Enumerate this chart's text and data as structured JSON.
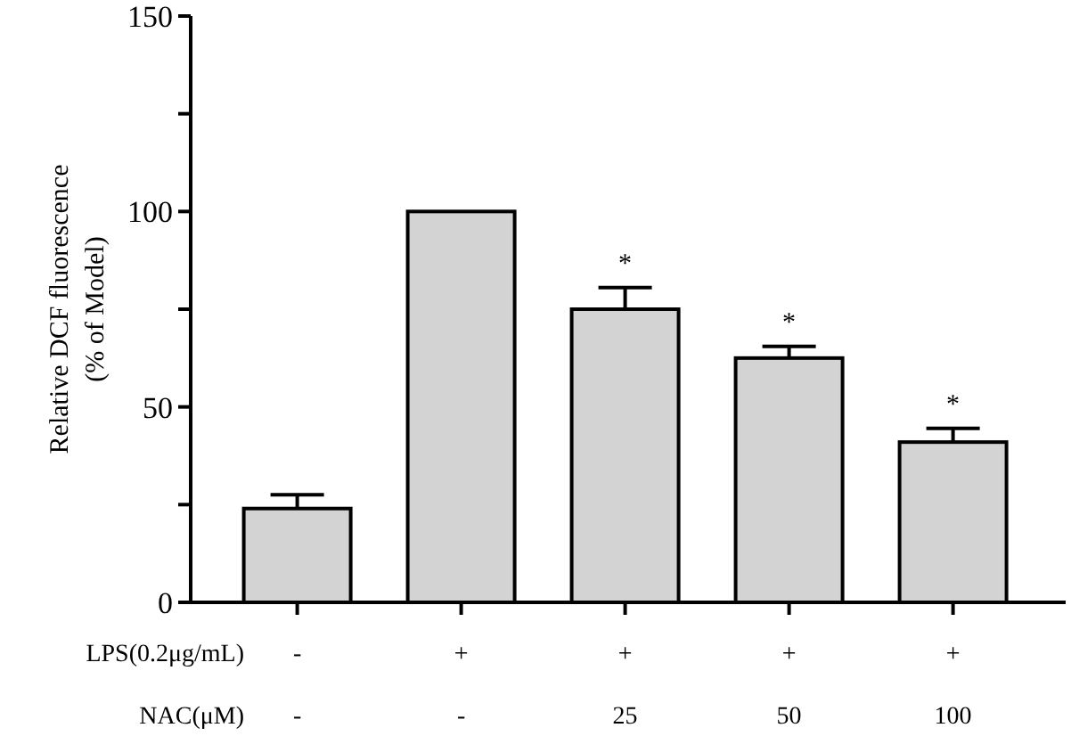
{
  "chart_data": {
    "type": "bar",
    "ylabel": "Relative DCF fluorescence\n(% of  Model)",
    "categories": [
      "-\n-",
      "+\n-",
      "+\n25",
      "+\n50",
      "+\n100"
    ],
    "values": [
      24,
      100,
      75,
      62.5,
      41
    ],
    "errors": [
      [
        24,
        27.5
      ],
      null,
      [
        75,
        80.5
      ],
      [
        62.5,
        65.5
      ],
      [
        41,
        44.5
      ]
    ],
    "value_labels": [
      null,
      null,
      "*",
      "*",
      "*"
    ],
    "color": "#d3d3d3",
    "ylim": [
      0,
      150
    ],
    "yticks": [
      0,
      {
        "value": 25,
        "label": null
      },
      50,
      {
        "value": 75,
        "label": null
      },
      100,
      {
        "value": 125,
        "label": null
      },
      150
    ],
    "annotations": [
      "LPS(0.2μg/mL)",
      "NAC(μM)"
    ],
    "grid": false
  }
}
